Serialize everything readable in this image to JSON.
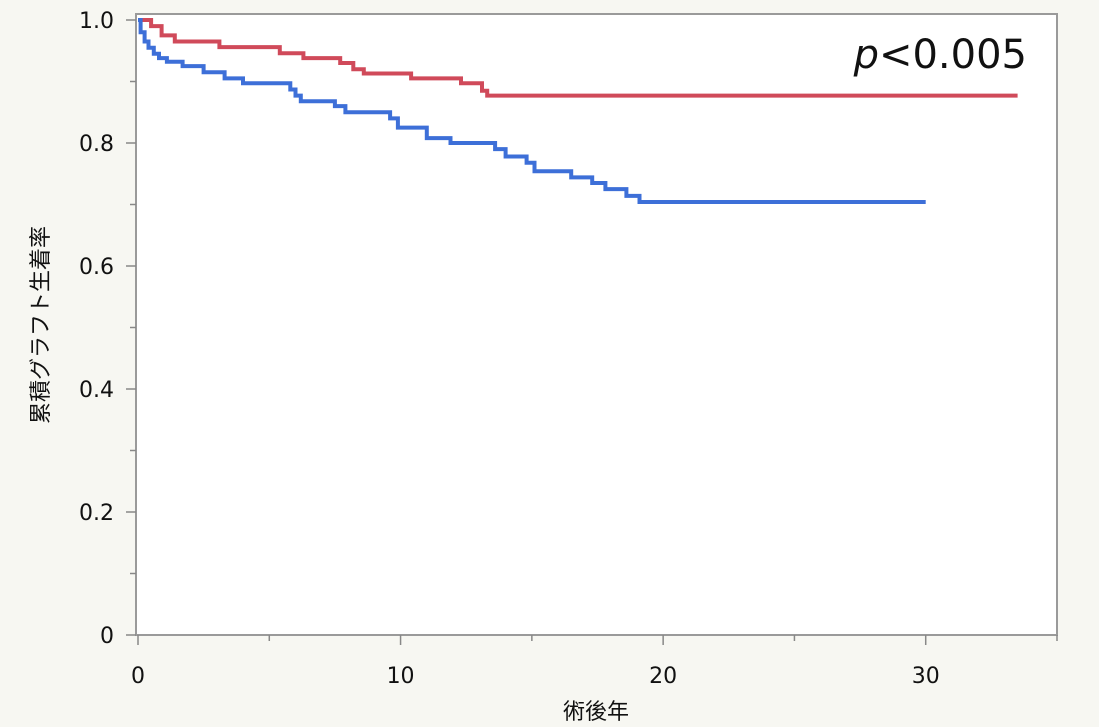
{
  "chart_data": {
    "type": "line",
    "title": "",
    "xlabel": "術後年",
    "ylabel": "累積グラフト生着率",
    "xlim": [
      0,
      35
    ],
    "ylim": [
      0,
      1.0
    ],
    "x_ticks": [
      0,
      10,
      20,
      30
    ],
    "x_tick_labels": [
      "0",
      "10",
      "20",
      "30"
    ],
    "y_ticks": [
      0,
      0.2,
      0.4,
      0.6,
      0.8,
      1.0
    ],
    "y_tick_labels": [
      "0",
      "0.2",
      "0.4",
      "0.6",
      "0.8",
      "1.0"
    ],
    "annotation": {
      "italic": "p",
      "rest": "<0.005"
    },
    "grid": false,
    "series": [
      {
        "color": "#d04a5a",
        "step": true,
        "points": [
          [
            0,
            1.0
          ],
          [
            0.5,
            0.99
          ],
          [
            0.9,
            0.975
          ],
          [
            1.4,
            0.965
          ],
          [
            3.1,
            0.956
          ],
          [
            5.4,
            0.946
          ],
          [
            6.3,
            0.938
          ],
          [
            7.7,
            0.93
          ],
          [
            8.2,
            0.92
          ],
          [
            8.6,
            0.913
          ],
          [
            10.4,
            0.905
          ],
          [
            12.3,
            0.897
          ],
          [
            13.1,
            0.885
          ],
          [
            13.3,
            0.877
          ],
          [
            33.5,
            0.877
          ]
        ]
      },
      {
        "color": "#3d6fd8",
        "step": true,
        "points": [
          [
            0,
            1.0
          ],
          [
            0.1,
            0.98
          ],
          [
            0.25,
            0.965
          ],
          [
            0.4,
            0.955
          ],
          [
            0.6,
            0.945
          ],
          [
            0.8,
            0.938
          ],
          [
            1.1,
            0.932
          ],
          [
            1.7,
            0.925
          ],
          [
            2.5,
            0.915
          ],
          [
            3.3,
            0.905
          ],
          [
            4.0,
            0.897
          ],
          [
            5.8,
            0.887
          ],
          [
            6.0,
            0.877
          ],
          [
            6.2,
            0.868
          ],
          [
            7.5,
            0.86
          ],
          [
            7.9,
            0.85
          ],
          [
            9.6,
            0.84
          ],
          [
            9.9,
            0.825
          ],
          [
            11.0,
            0.808
          ],
          [
            11.9,
            0.8
          ],
          [
            13.6,
            0.79
          ],
          [
            14.0,
            0.778
          ],
          [
            14.8,
            0.768
          ],
          [
            15.1,
            0.754
          ],
          [
            16.5,
            0.744
          ],
          [
            17.3,
            0.735
          ],
          [
            17.8,
            0.725
          ],
          [
            18.6,
            0.714
          ],
          [
            19.1,
            0.704
          ],
          [
            30.0,
            0.704
          ]
        ]
      }
    ]
  }
}
